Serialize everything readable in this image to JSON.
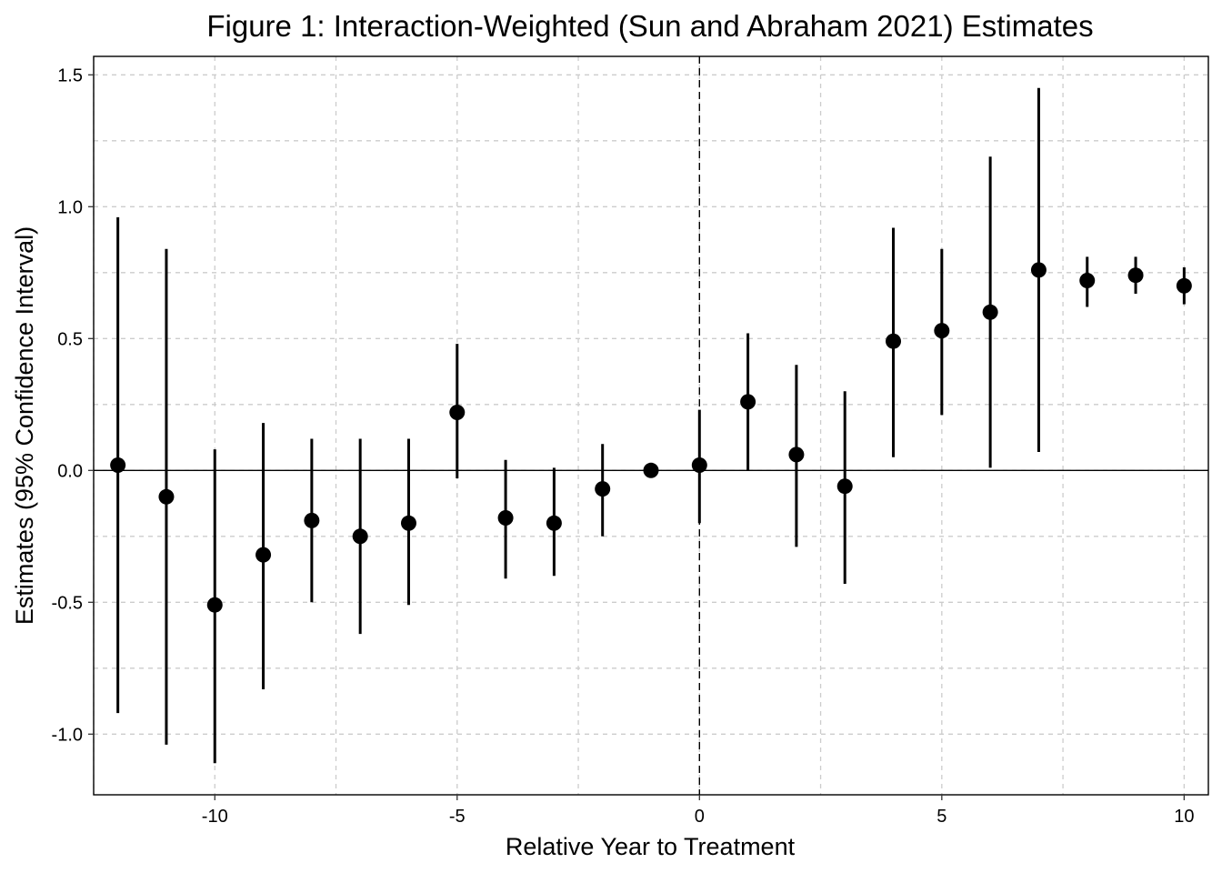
{
  "chart_data": {
    "type": "scatter",
    "style": "point-with-errorbars",
    "title": "Figure 1: Interaction-Weighted (Sun and Abraham 2021) Estimates",
    "xlabel": "Relative Year to Treatment",
    "ylabel": "Estimates (95% Confidence Interval)",
    "xlim": [
      -12.5,
      10.5
    ],
    "ylim": [
      -1.23,
      1.57
    ],
    "x_ticks": [
      -10,
      -5,
      0,
      5,
      10
    ],
    "x_tick_labels": [
      "-10",
      "-5",
      "0",
      "5",
      "10"
    ],
    "y_ticks": [
      1.5,
      1.0,
      0.5,
      0.0,
      -0.5,
      -1.0
    ],
    "y_tick_labels": [
      "1.5",
      "1.0",
      "0.5",
      "0.0",
      "-0.5",
      "-1.0"
    ],
    "grid": true,
    "reference_lines": {
      "horizontal_y": 0,
      "vertical_x": 0
    },
    "colors": {
      "points": "#000000",
      "grid": "#cccccc"
    },
    "points": [
      {
        "x": -12,
        "estimate": 0.02,
        "ci_low": -0.92,
        "ci_high": 0.96
      },
      {
        "x": -11,
        "estimate": -0.1,
        "ci_low": -1.04,
        "ci_high": 0.84
      },
      {
        "x": -10,
        "estimate": -0.51,
        "ci_low": -1.11,
        "ci_high": 0.08
      },
      {
        "x": -9,
        "estimate": -0.32,
        "ci_low": -0.83,
        "ci_high": 0.18
      },
      {
        "x": -8,
        "estimate": -0.19,
        "ci_low": -0.5,
        "ci_high": 0.12
      },
      {
        "x": -7,
        "estimate": -0.25,
        "ci_low": -0.62,
        "ci_high": 0.12
      },
      {
        "x": -6,
        "estimate": -0.2,
        "ci_low": -0.51,
        "ci_high": 0.12
      },
      {
        "x": -5,
        "estimate": 0.22,
        "ci_low": -0.03,
        "ci_high": 0.48
      },
      {
        "x": -4,
        "estimate": -0.18,
        "ci_low": -0.41,
        "ci_high": 0.04
      },
      {
        "x": -3,
        "estimate": -0.2,
        "ci_low": -0.4,
        "ci_high": 0.01
      },
      {
        "x": -2,
        "estimate": -0.07,
        "ci_low": -0.25,
        "ci_high": 0.1
      },
      {
        "x": -1,
        "estimate": 0.0,
        "ci_low": 0.0,
        "ci_high": 0.0
      },
      {
        "x": 0,
        "estimate": 0.02,
        "ci_low": -0.2,
        "ci_high": 0.23
      },
      {
        "x": 1,
        "estimate": 0.26,
        "ci_low": 0.0,
        "ci_high": 0.52
      },
      {
        "x": 2,
        "estimate": 0.06,
        "ci_low": -0.29,
        "ci_high": 0.4
      },
      {
        "x": 3,
        "estimate": -0.06,
        "ci_low": -0.43,
        "ci_high": 0.3
      },
      {
        "x": 4,
        "estimate": 0.49,
        "ci_low": 0.05,
        "ci_high": 0.92
      },
      {
        "x": 5,
        "estimate": 0.53,
        "ci_low": 0.21,
        "ci_high": 0.84
      },
      {
        "x": 6,
        "estimate": 0.6,
        "ci_low": 0.01,
        "ci_high": 1.19
      },
      {
        "x": 7,
        "estimate": 0.76,
        "ci_low": 0.07,
        "ci_high": 1.45
      },
      {
        "x": 8,
        "estimate": 0.72,
        "ci_low": 0.62,
        "ci_high": 0.81
      },
      {
        "x": 9,
        "estimate": 0.74,
        "ci_low": 0.67,
        "ci_high": 0.81
      },
      {
        "x": 10,
        "estimate": 0.7,
        "ci_low": 0.63,
        "ci_high": 0.77
      }
    ]
  }
}
